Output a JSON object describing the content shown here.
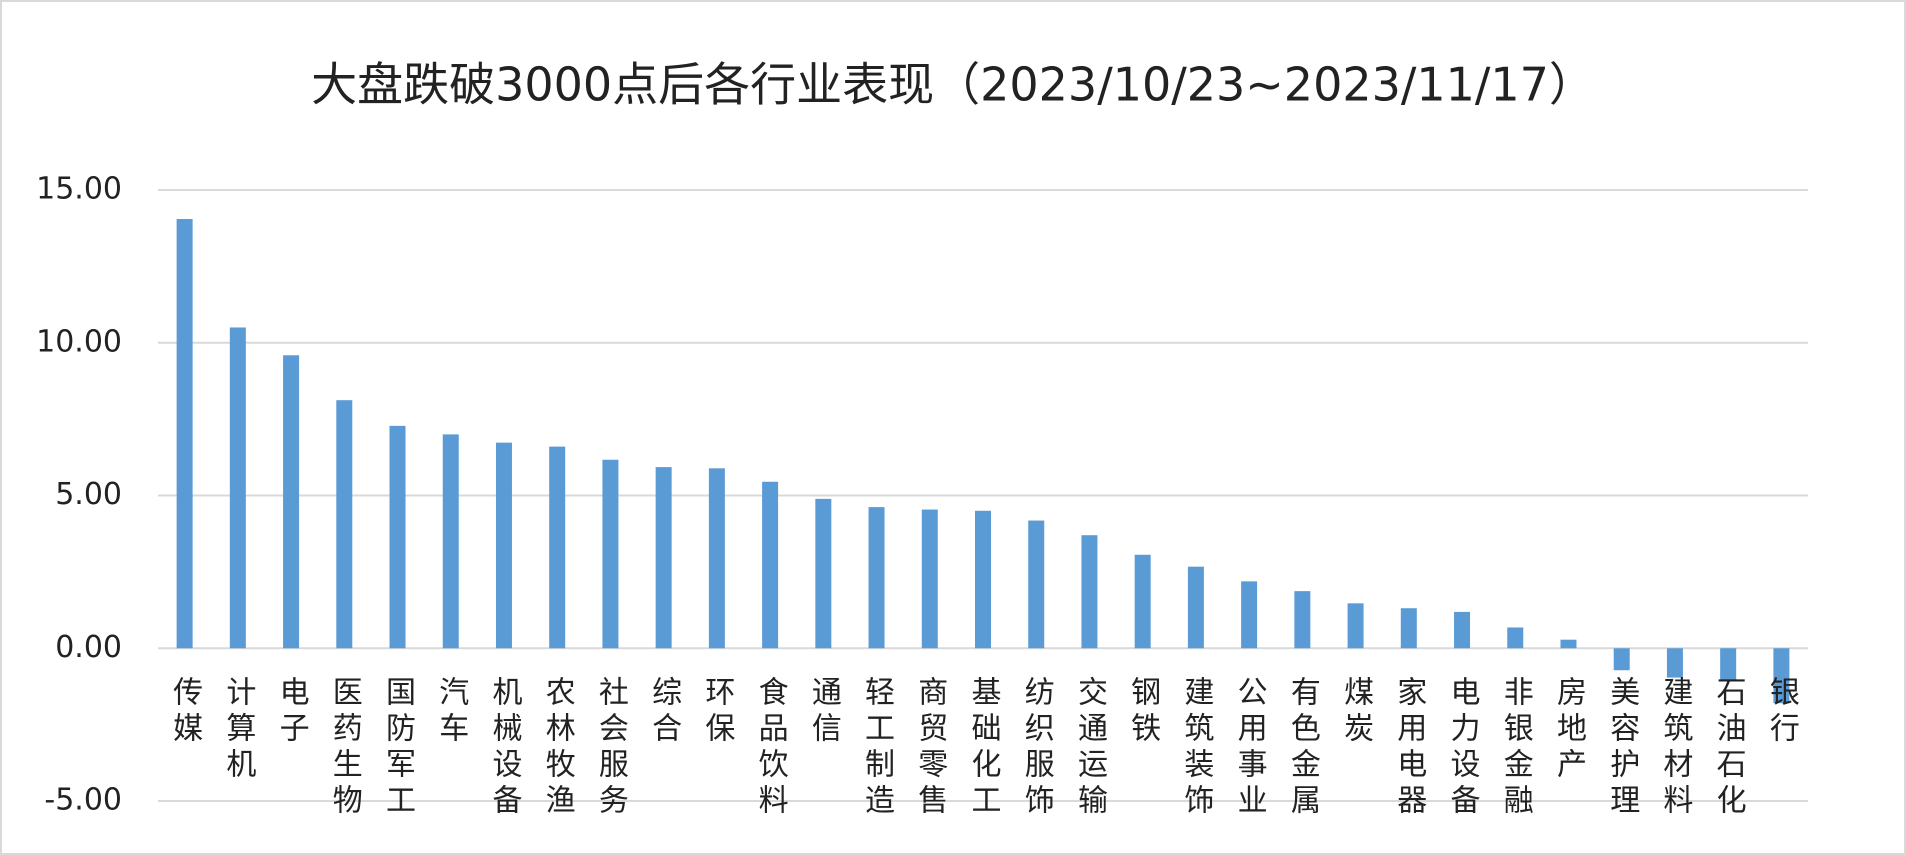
{
  "chart_data": {
    "type": "bar",
    "title": "大盘跌破3000点后各行业表现（2023/10/23~2023/11/17）",
    "categories": [
      "传媒",
      "计算机",
      "电子",
      "医药生物",
      "国防军工",
      "汽车",
      "机械设备",
      "农林牧渔",
      "社会服务",
      "综合",
      "环保",
      "食品饮料",
      "通信",
      "轻工制造",
      "商贸零售",
      "基础化工",
      "纺织服饰",
      "交通运输",
      "钢铁",
      "建筑装饰",
      "公用事业",
      "有色金属",
      "煤炭",
      "家用电器",
      "电力设备",
      "非银金融",
      "房地产",
      "美容护理",
      "建筑材料",
      "石油石化",
      "银行"
    ],
    "values": [
      14.05,
      10.5,
      9.59,
      8.12,
      7.28,
      7.0,
      6.73,
      6.6,
      6.17,
      5.93,
      5.89,
      5.45,
      4.89,
      4.62,
      4.54,
      4.5,
      4.18,
      3.7,
      3.06,
      2.67,
      2.19,
      1.87,
      1.47,
      1.31,
      1.19,
      0.68,
      0.28,
      -0.72,
      -0.96,
      -1.05,
      -1.8
    ],
    "color": "#5b9bd5",
    "ylim": [
      -5,
      15
    ],
    "yticks": [
      {
        "value": -5,
        "label": "-5.00"
      },
      {
        "value": 0,
        "label": "0.00"
      },
      {
        "value": 5,
        "label": "5.00"
      },
      {
        "value": 10,
        "label": "10.00"
      },
      {
        "value": 15,
        "label": "15.00"
      }
    ],
    "grid": true
  }
}
